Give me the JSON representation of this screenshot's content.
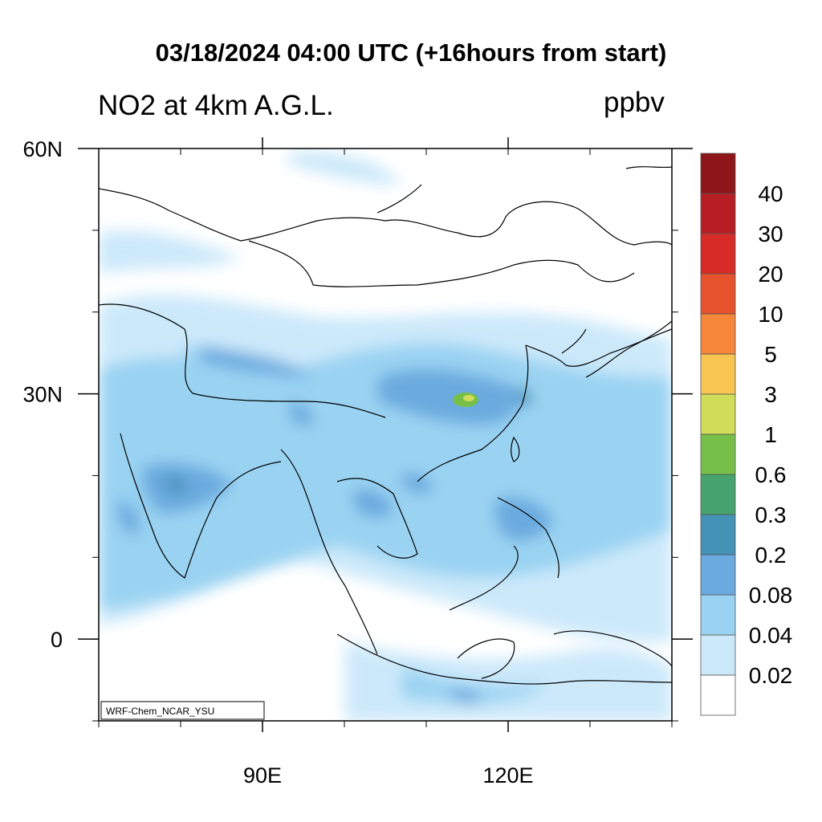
{
  "title": "03/18/2024 04:00 UTC (+16hours from start)",
  "subtitle": "NO2 at 4km A.G.L.",
  "units": "ppbv",
  "credit": "WRF-Chem_NCAR_YSU",
  "chart_data": {
    "type": "heatmap",
    "variable": "NO2",
    "x_ticks": [
      {
        "value": 90,
        "label": "90E"
      },
      {
        "value": 120,
        "label": "120E"
      }
    ],
    "y_ticks": [
      {
        "value": 60,
        "label": "60N"
      },
      {
        "value": 30,
        "label": "30N"
      },
      {
        "value": 0,
        "label": "0"
      }
    ],
    "xlim": [
      70,
      140
    ],
    "ylim": [
      -10,
      60
    ],
    "colorbar": {
      "labels": [
        "0.02",
        "0.04",
        "0.08",
        "0.2",
        "0.3",
        "0.6",
        "1",
        "3",
        "5",
        "10",
        "20",
        "30",
        "40"
      ],
      "colors": [
        "#ffffff",
        "#cce9fa",
        "#9ad3f2",
        "#6aaadf",
        "#4592b7",
        "#46a36d",
        "#76c04a",
        "#cfdd58",
        "#f8c452",
        "#f5863a",
        "#e6522c",
        "#d62b27",
        "#b61e24",
        "#8e1519"
      ]
    }
  }
}
